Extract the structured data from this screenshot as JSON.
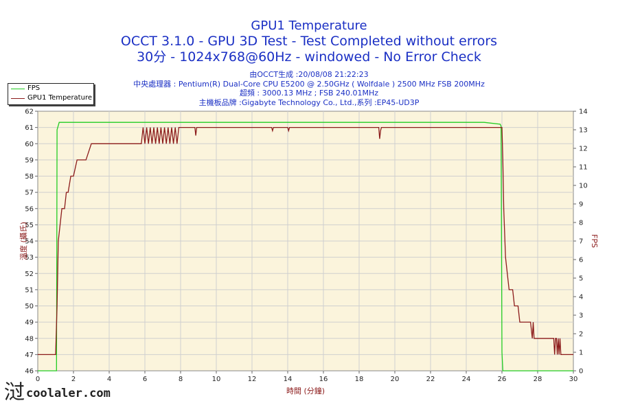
{
  "chart_data": {
    "type": "line",
    "title": "GPU1 Temperature",
    "subtitle": "OCCT 3.1.0 - GPU 3D Test - Test Completed without errors",
    "subtitle2": "30分 - 1024x768@60Hz - windowed - No Error Check",
    "info_lines": [
      "由OCCT生成 :20/08/08 21:22:23",
      "中央處理器 : Pentium(R) Dual-Core CPU E5200 @ 2.50GHz ( Wolfdale ) 2500 MHz FSB 200MHz",
      "超頻 : 3000.13 MHz ; FSB 240.01MHz",
      "主機板品牌 :Gigabyte Technology Co., Ltd.,系列 :EP45-UD3P"
    ],
    "xlabel": "時間 (分鐘)",
    "ylabel": "溫度 (攝氏)",
    "y2label": "FPS",
    "xlim": [
      0,
      30
    ],
    "ylim": [
      46,
      62
    ],
    "y2lim": [
      0,
      14
    ],
    "x_ticks": [
      "0",
      "2",
      "4",
      "6",
      "8",
      "10",
      "12",
      "14",
      "16",
      "18",
      "20",
      "22",
      "24",
      "26",
      "28",
      "30"
    ],
    "y_ticks": [
      "46",
      "47",
      "48",
      "49",
      "50",
      "51",
      "52",
      "53",
      "54",
      "55",
      "56",
      "57",
      "58",
      "59",
      "60",
      "61",
      "62"
    ],
    "y2_ticks": [
      "0",
      "1",
      "2",
      "3",
      "4",
      "5",
      "6",
      "7",
      "8",
      "9",
      "10",
      "11",
      "12",
      "13",
      "14"
    ],
    "grid": true,
    "legend_position": "top-left",
    "series": [
      {
        "name": "FPS",
        "axis": "right",
        "color": "#22cc22",
        "x": [
          0,
          1.05,
          1.08,
          1.2,
          1.5,
          3,
          5,
          8,
          10,
          13,
          16,
          19,
          22,
          25,
          25.9,
          25.95,
          26.0,
          26.05,
          30
        ],
        "y": [
          0,
          0,
          13,
          13.4,
          13.4,
          13.4,
          13.4,
          13.4,
          13.4,
          13.4,
          13.4,
          13.4,
          13.4,
          13.4,
          13.3,
          13.2,
          1,
          0,
          0
        ]
      },
      {
        "name": "GPU1 Temperature",
        "axis": "left",
        "color": "#8b1a1a",
        "x": [
          0,
          1.0,
          1.08,
          1.15,
          1.25,
          1.35,
          1.5,
          1.6,
          1.7,
          1.85,
          2.0,
          2.2,
          2.3,
          2.5,
          2.7,
          3.0,
          3.2,
          3.4,
          4.0,
          5.0,
          5.8,
          5.9,
          6.0,
          6.1,
          6.2,
          6.3,
          6.4,
          6.5,
          6.6,
          6.7,
          6.8,
          6.9,
          7.0,
          7.1,
          7.2,
          7.3,
          7.4,
          7.5,
          7.6,
          7.7,
          7.8,
          7.9,
          8.0,
          8.1,
          8.2,
          8.4,
          8.6,
          8.8,
          8.85,
          8.9,
          8.95,
          9.0,
          10,
          12,
          13.1,
          13.15,
          13.2,
          14.0,
          14.05,
          14.1,
          16,
          18,
          19.1,
          19.15,
          19.2,
          19.25,
          19.3,
          20,
          22,
          24,
          25.9,
          26.0,
          26.05,
          26.1,
          26.2,
          26.3,
          26.4,
          26.5,
          26.6,
          26.7,
          26.8,
          26.9,
          27.0,
          27.2,
          27.4,
          27.6,
          27.7,
          27.75,
          27.8,
          27.85,
          27.9,
          28.0,
          28.3,
          28.6,
          28.9,
          28.95,
          29.0,
          29.05,
          29.1,
          29.15,
          29.2,
          29.25,
          29.3,
          29.35,
          29.5,
          30
        ],
        "y": [
          47,
          47,
          50,
          54,
          55,
          56,
          56,
          57,
          57,
          58,
          58,
          59,
          59,
          59,
          59,
          60,
          60,
          60,
          60,
          60,
          60,
          61,
          60,
          61,
          60,
          61,
          60,
          61,
          60,
          61,
          60,
          61,
          60,
          61,
          60,
          61,
          60,
          61,
          60,
          61,
          60,
          61,
          61,
          61,
          61,
          61,
          61,
          61,
          60.5,
          61,
          61,
          61,
          61,
          61,
          61,
          60.8,
          61,
          61,
          60.8,
          61,
          61,
          61,
          61,
          60.3,
          60.8,
          61,
          61,
          61,
          61,
          61,
          61,
          61,
          59,
          56,
          53,
          52,
          51,
          51,
          51,
          50,
          50,
          50,
          49,
          49,
          49,
          49,
          48,
          49,
          48,
          48,
          48,
          48,
          48,
          48,
          48,
          47,
          48,
          48,
          47,
          48,
          47,
          48,
          47,
          47,
          47,
          47
        ]
      }
    ]
  },
  "watermark": "coolaler.com"
}
